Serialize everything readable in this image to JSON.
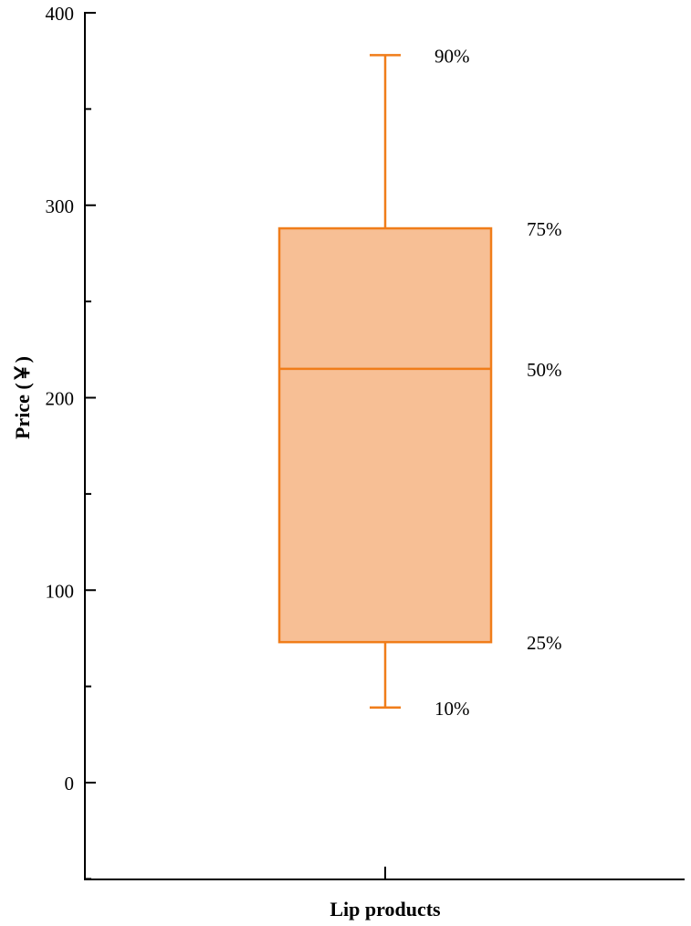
{
  "chart_data": {
    "type": "box",
    "categories": [
      "Lip products"
    ],
    "xlabel": "Lip products",
    "ylabel": "Price (￥)",
    "ylim": [
      -50,
      400
    ],
    "yticks": [
      0,
      100,
      200,
      300,
      400
    ],
    "grid": false,
    "boxes": [
      {
        "category": "Lip products",
        "p10": 39,
        "p25": 73,
        "p50": 215,
        "p75": 288,
        "p90": 378
      }
    ],
    "percentile_labels": {
      "p10": "10%",
      "p25": "25%",
      "p50": "50%",
      "p75": "75%",
      "p90": "90%"
    },
    "colors": {
      "box_fill": "#f7bf95",
      "box_stroke": "#f07d1a",
      "axis": "#000000"
    }
  }
}
